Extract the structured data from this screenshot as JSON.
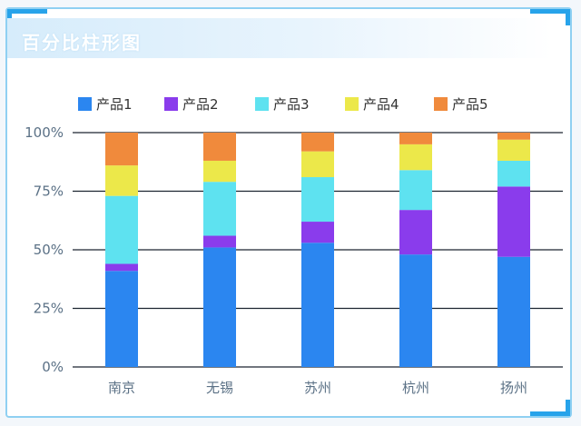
{
  "colors": {
    "产品1": "#2b86f0",
    "产品2": "#8a3cec",
    "产品3": "#5ee2f0",
    "产品4": "#ece84a",
    "产品5": "#f08a3c"
  },
  "chart_data": {
    "type": "bar",
    "stacked": true,
    "percent": true,
    "title": "百分比柱形图",
    "categories": [
      "南京",
      "无锡",
      "苏州",
      "杭州",
      "扬州"
    ],
    "series": [
      {
        "name": "产品1",
        "values": [
          41,
          51,
          53,
          48,
          47
        ]
      },
      {
        "name": "产品2",
        "values": [
          3,
          5,
          9,
          19,
          30
        ]
      },
      {
        "name": "产品3",
        "values": [
          29,
          23,
          19,
          17,
          11
        ]
      },
      {
        "name": "产品4",
        "values": [
          13,
          9,
          11,
          11,
          9
        ]
      },
      {
        "name": "产品5",
        "values": [
          14,
          12,
          8,
          5,
          3
        ]
      }
    ],
    "yticks": [
      "0%",
      "25%",
      "50%",
      "75%",
      "100%"
    ],
    "ylim": [
      0,
      100
    ],
    "grid": true,
    "legend": "top-left"
  }
}
